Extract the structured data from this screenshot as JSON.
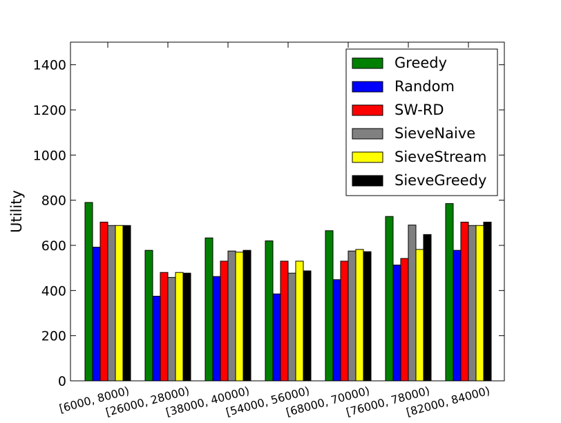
{
  "chart_data": {
    "type": "bar",
    "title": "",
    "xlabel": "",
    "ylabel": "Utility",
    "ylim": [
      0,
      1500
    ],
    "yticks": [
      0,
      200,
      400,
      600,
      800,
      1000,
      1200,
      1400
    ],
    "legend_position": "top-right",
    "categories": [
      "[6000, 8000)",
      "[26000, 28000)",
      "[38000, 40000)",
      "[54000, 56000)",
      "[68000, 70000)",
      "[76000, 78000)",
      "[82000, 84000)"
    ],
    "series": [
      {
        "name": "Greedy",
        "color": "#008000",
        "values": [
          790,
          578,
          633,
          620,
          665,
          728,
          785
        ]
      },
      {
        "name": "Random",
        "color": "#0000ff",
        "values": [
          592,
          375,
          462,
          385,
          448,
          513,
          578
        ]
      },
      {
        "name": "SW-RD",
        "color": "#ff0000",
        "values": [
          703,
          480,
          530,
          530,
          530,
          542,
          703
        ]
      },
      {
        "name": "SieveNaive",
        "color": "#808080",
        "values": [
          688,
          458,
          575,
          477,
          575,
          690,
          688
        ]
      },
      {
        "name": "SieveStream",
        "color": "#ffff00",
        "values": [
          688,
          480,
          570,
          530,
          582,
          582,
          688
        ]
      },
      {
        "name": "SieveGreedy",
        "color": "#000000",
        "values": [
          688,
          477,
          578,
          487,
          572,
          648,
          703
        ]
      }
    ]
  }
}
